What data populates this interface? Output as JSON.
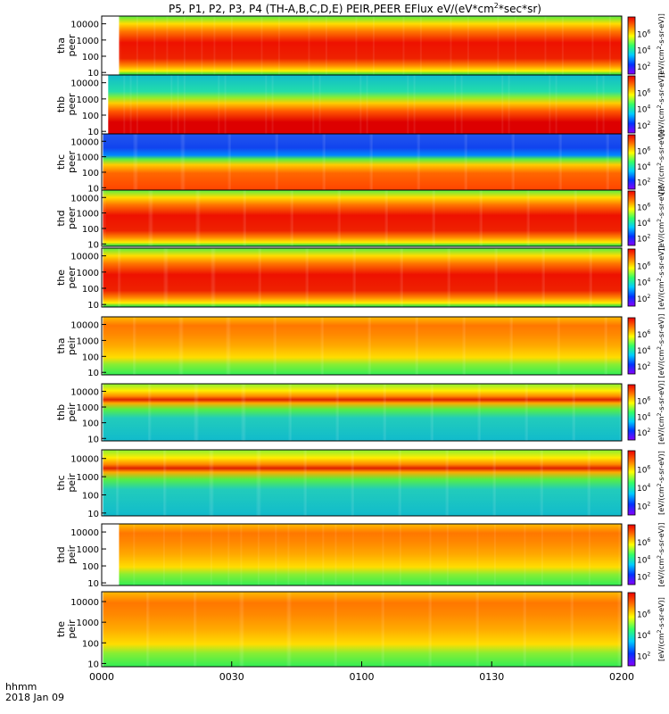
{
  "figure": {
    "title_parts": [
      "P5, P1, P2, P3, P4 (TH-A,B,C,D,E) PEIR,PEER EFlux eV/(eV*cm",
      "2",
      "*sec*sr)"
    ]
  },
  "chart_data": {
    "type": "heatmap",
    "title": "P5, P1, P2, P3, P4 (TH-A,B,C,D,E) PEIR,PEER EFlux eV/(eV*cm2*sec*sr)",
    "xaxis": {
      "ticks": [
        "0000",
        "0030",
        "0100",
        "0130",
        "0200"
      ],
      "tick_minutes": [
        0,
        30,
        60,
        90,
        120
      ],
      "range_minutes": [
        0,
        120
      ],
      "label_line1": "hhmm",
      "label_line2": "2018 Jan 09"
    },
    "yaxis": {
      "scale": "log",
      "ticks": [
        "10",
        "100",
        "1000",
        "10000"
      ],
      "tick_values": [
        10,
        100,
        1000,
        10000
      ],
      "range": [
        7,
        30000
      ],
      "unit": "eV"
    },
    "colorbar": {
      "scale": "log",
      "range": [
        10,
        100000000
      ],
      "colors": [
        "#8800ff",
        "#0033ff",
        "#00ccff",
        "#33ff66",
        "#ffff00",
        "#ff7700",
        "#ee0000"
      ],
      "ticks": [
        {
          "base": "10",
          "exp": "2",
          "value": 100
        },
        {
          "base": "10",
          "exp": "4",
          "value": 10000
        },
        {
          "base": "10",
          "exp": "6",
          "value": 1000000
        },
        {
          "base": "10",
          "exp": "8",
          "value": 100000000
        }
      ],
      "label_parts": [
        "[eV/(cm",
        "2",
        "-s-sr-eV)]"
      ]
    },
    "panels": [
      {
        "label_line1": "tha",
        "label_line2": "peer",
        "data_start_min": 4.0
      },
      {
        "label_line1": "thb",
        "label_line2": "peer",
        "data_start_min": 1.5
      },
      {
        "label_line1": "thc",
        "label_line2": "peer",
        "data_start_min": 0.3
      },
      {
        "label_line1": "thd",
        "label_line2": "peer",
        "data_start_min": 0.3
      },
      {
        "label_line1": "the",
        "label_line2": "peer",
        "data_start_min": 0.3
      },
      {
        "label_line1": "tha",
        "label_line2": "peir",
        "data_start_min": 0.3
      },
      {
        "label_line1": "thb",
        "label_line2": "peir",
        "data_start_min": 0.3
      },
      {
        "label_line1": "thc",
        "label_line2": "peir",
        "data_start_min": 0.3
      },
      {
        "label_line1": "thd",
        "label_line2": "peir",
        "data_start_min": 4.0
      },
      {
        "label_line1": "the",
        "label_line2": "peir",
        "data_start_min": 0.3
      }
    ]
  }
}
